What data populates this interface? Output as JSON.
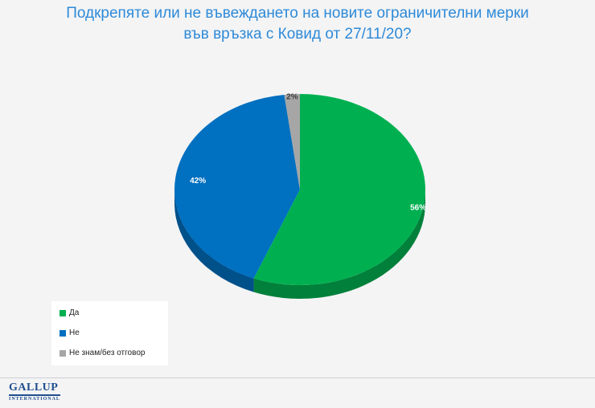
{
  "chart_data": {
    "type": "pie",
    "title_lines": [
      "Подкрепяте или не въвеждането на новите ограничителни мерки",
      "във връзка с Ковид от 27/11/20?"
    ],
    "categories": [
      "Да",
      "Не",
      "Не знам/без отговор"
    ],
    "values": [
      56,
      42,
      2
    ],
    "labels": [
      "56%",
      "42%",
      "2%"
    ],
    "colors": [
      "#00b050",
      "#0070c0",
      "#a6a6a6"
    ],
    "side_colors": [
      "#00803a",
      "#00508a",
      "#7a7a7a"
    ],
    "label_colors": [
      "#ffffff",
      "#ffffff",
      "#404040"
    ],
    "style": "3d",
    "legend_position": "bottom-left"
  },
  "footer": {
    "logo_main": "GALLUP",
    "logo_sub": "INTERNATIONAL"
  }
}
